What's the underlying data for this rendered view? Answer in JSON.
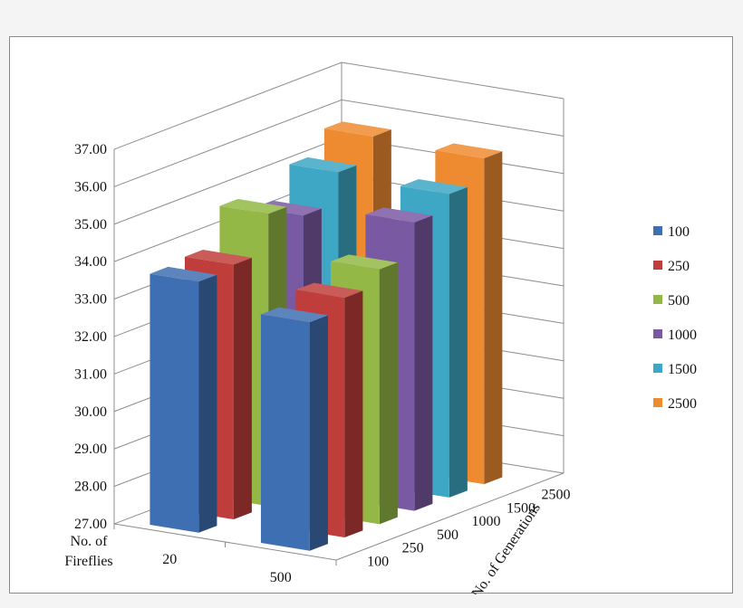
{
  "chart_data": {
    "type": "bar",
    "variant": "3d-column",
    "x_axis": {
      "label": "No. of Fireflies",
      "categories": [
        "20",
        "500"
      ]
    },
    "depth_axis": {
      "label": "No. of Generations",
      "categories": [
        "100",
        "250",
        "500",
        "1000",
        "1500",
        "2500"
      ]
    },
    "y_axis": {
      "ylim": [
        27.0,
        37.0
      ],
      "ticks": [
        "27.00",
        "28.00",
        "29.00",
        "30.00",
        "31.00",
        "32.00",
        "33.00",
        "34.00",
        "35.00",
        "36.00",
        "37.00"
      ]
    },
    "grid": true,
    "legend_position": "right",
    "series": [
      {
        "name": "100",
        "color": "#3f6fb3",
        "values": [
          33.7,
          33.1
        ]
      },
      {
        "name": "250",
        "color": "#bf3e3b",
        "values": [
          33.8,
          33.4
        ]
      },
      {
        "name": "500",
        "color": "#93b845",
        "values": [
          34.8,
          33.8
        ]
      },
      {
        "name": "1000",
        "color": "#7a59a3",
        "values": [
          34.4,
          34.7
        ]
      },
      {
        "name": "1500",
        "color": "#3ea7c5",
        "values": [
          35.2,
          35.1
        ]
      },
      {
        "name": "2500",
        "color": "#ee8a2f",
        "values": [
          35.8,
          35.7
        ]
      }
    ]
  }
}
